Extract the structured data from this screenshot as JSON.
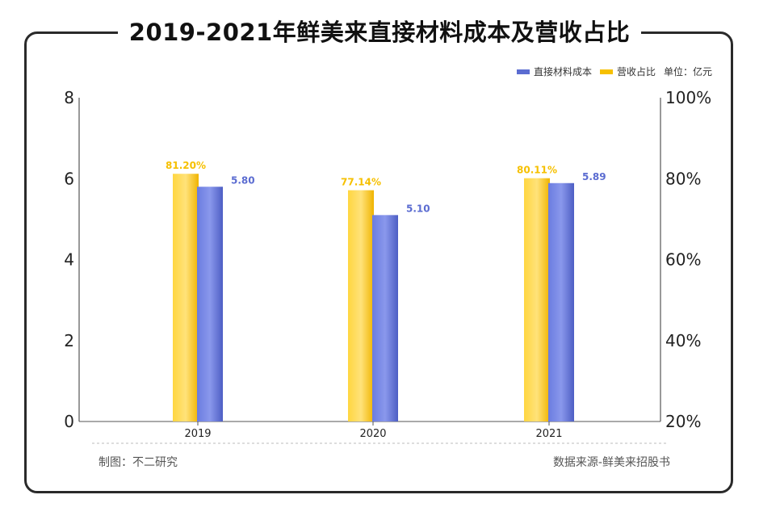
{
  "title": "2019-2021年鲜美来直接材料成本及营收占比",
  "legend": {
    "series1": "直接材料成本",
    "series2": "营收占比",
    "unit": "单位：亿元"
  },
  "footer": {
    "left": "制图：不二研究",
    "right": "数据来源-鲜美来招股书"
  },
  "colors": {
    "blue": "#5b6cd1",
    "yellow": "#f6c000"
  },
  "chart_data": {
    "type": "bar",
    "categories": [
      "2019",
      "2020",
      "2021"
    ],
    "series": [
      {
        "name": "营收占比",
        "axis": "right",
        "values": [
          81.2,
          77.14,
          80.11
        ],
        "labels": [
          "81.20%",
          "77.14%",
          "80.11%"
        ],
        "color": "#f6c000"
      },
      {
        "name": "直接材料成本",
        "axis": "left",
        "values": [
          5.8,
          5.1,
          5.89
        ],
        "labels": [
          "5.80",
          "5.10",
          "5.89"
        ],
        "color": "#5b6cd1"
      }
    ],
    "y_left": {
      "range": [
        0,
        8
      ],
      "ticks": [
        "0",
        "2",
        "4",
        "6",
        "8"
      ]
    },
    "y_right": {
      "range": [
        20,
        100
      ],
      "ticks": [
        "20%",
        "40%",
        "60%",
        "80%",
        "100%"
      ]
    },
    "grid": false,
    "legend_position": "top-right"
  }
}
